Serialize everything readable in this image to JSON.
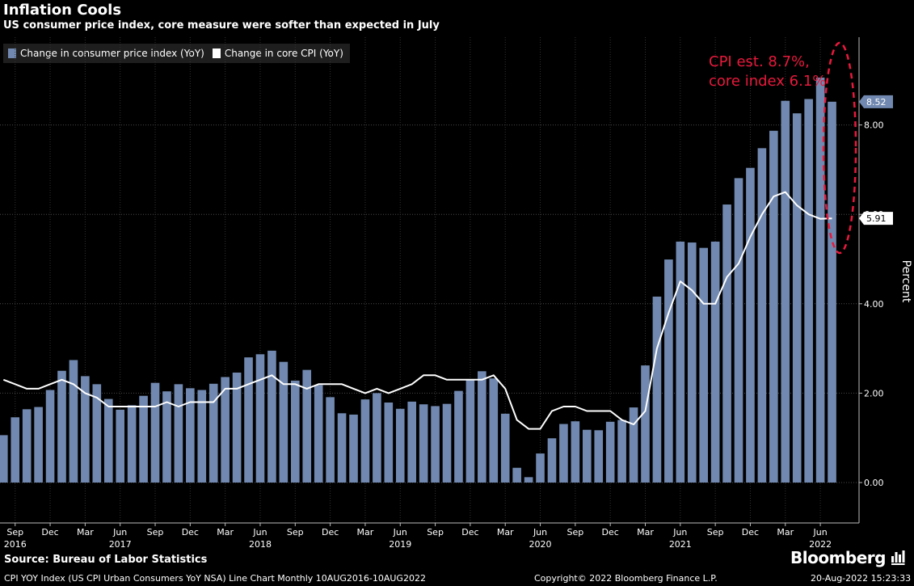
{
  "header": {
    "title": "Inflation Cools",
    "subtitle": "US consumer price index, core measure were softer than expected in July"
  },
  "legend": {
    "items": [
      {
        "label": "Change in consumer price index (YoY)",
        "color": "#7189b0"
      },
      {
        "label": "Change in core CPI (YoY)",
        "color": "#ffffff"
      }
    ]
  },
  "chart_data": {
    "type": "bar",
    "x_range": [
      "2016-08",
      "2022-07"
    ],
    "months": [
      "2016-08",
      "2016-09",
      "2016-10",
      "2016-11",
      "2016-12",
      "2017-01",
      "2017-02",
      "2017-03",
      "2017-04",
      "2017-05",
      "2017-06",
      "2017-07",
      "2017-08",
      "2017-09",
      "2017-10",
      "2017-11",
      "2017-12",
      "2018-01",
      "2018-02",
      "2018-03",
      "2018-04",
      "2018-05",
      "2018-06",
      "2018-07",
      "2018-08",
      "2018-09",
      "2018-10",
      "2018-11",
      "2018-12",
      "2019-01",
      "2019-02",
      "2019-03",
      "2019-04",
      "2019-05",
      "2019-06",
      "2019-07",
      "2019-08",
      "2019-09",
      "2019-10",
      "2019-11",
      "2019-12",
      "2020-01",
      "2020-02",
      "2020-03",
      "2020-04",
      "2020-05",
      "2020-06",
      "2020-07",
      "2020-08",
      "2020-09",
      "2020-10",
      "2020-11",
      "2020-12",
      "2021-01",
      "2021-02",
      "2021-03",
      "2021-04",
      "2021-05",
      "2021-06",
      "2021-07",
      "2021-08",
      "2021-09",
      "2021-10",
      "2021-11",
      "2021-12",
      "2022-01",
      "2022-02",
      "2022-03",
      "2022-04",
      "2022-05",
      "2022-06",
      "2022-07"
    ],
    "series": [
      {
        "name": "Change in consumer price index (YoY)",
        "style": "bar",
        "color": "#7189b0",
        "values": [
          1.06,
          1.46,
          1.64,
          1.69,
          2.07,
          2.5,
          2.74,
          2.38,
          2.2,
          1.87,
          1.63,
          1.73,
          1.94,
          2.23,
          2.04,
          2.2,
          2.11,
          2.07,
          2.21,
          2.36,
          2.46,
          2.8,
          2.87,
          2.95,
          2.7,
          2.28,
          2.52,
          2.18,
          1.91,
          1.55,
          1.52,
          1.86,
          2.0,
          1.79,
          1.65,
          1.81,
          1.75,
          1.71,
          1.76,
          2.05,
          2.29,
          2.49,
          2.33,
          1.54,
          0.33,
          0.12,
          0.65,
          0.99,
          1.31,
          1.37,
          1.18,
          1.17,
          1.36,
          1.4,
          1.68,
          2.62,
          4.16,
          4.99,
          5.39,
          5.37,
          5.25,
          5.39,
          6.22,
          6.81,
          7.04,
          7.48,
          7.87,
          8.54,
          8.26,
          8.58,
          9.06,
          8.52
        ]
      },
      {
        "name": "Change in core CPI (YoY)",
        "style": "line",
        "color": "#ffffff",
        "values": [
          2.3,
          2.2,
          2.1,
          2.1,
          2.2,
          2.3,
          2.2,
          2.0,
          1.9,
          1.7,
          1.7,
          1.7,
          1.7,
          1.7,
          1.8,
          1.7,
          1.8,
          1.8,
          1.8,
          2.1,
          2.1,
          2.2,
          2.3,
          2.4,
          2.2,
          2.2,
          2.1,
          2.2,
          2.2,
          2.2,
          2.1,
          2.0,
          2.1,
          2.0,
          2.1,
          2.2,
          2.4,
          2.4,
          2.3,
          2.3,
          2.3,
          2.3,
          2.4,
          2.1,
          1.4,
          1.2,
          1.2,
          1.6,
          1.7,
          1.7,
          1.6,
          1.6,
          1.6,
          1.4,
          1.3,
          1.6,
          3.0,
          3.8,
          4.5,
          4.3,
          4.0,
          4.0,
          4.6,
          4.9,
          5.5,
          6.0,
          6.4,
          6.5,
          6.2,
          6.0,
          5.9,
          5.91
        ]
      }
    ],
    "last_value_labels": [
      {
        "series": "Change in consumer price index (YoY)",
        "text": "8.52",
        "value": 8.52
      },
      {
        "series": "Change in core CPI (YoY)",
        "text": "5.91",
        "value": 5.91
      }
    ],
    "y_axis": {
      "label": "Percent",
      "position": "right",
      "ylim": [
        -0.85,
        9.3
      ],
      "ticks": [
        {
          "value": 0,
          "label": "0.00"
        },
        {
          "value": 2,
          "label": "2.00"
        },
        {
          "value": 4,
          "label": "4.00"
        },
        {
          "value": 6,
          "label": "6.00"
        },
        {
          "value": 8,
          "label": "8.00"
        }
      ]
    },
    "x_axis": {
      "month_ticks": [
        {
          "month": "2016-09",
          "label": "Sep"
        },
        {
          "month": "2016-12",
          "label": "Dec"
        },
        {
          "month": "2017-03",
          "label": "Mar"
        },
        {
          "month": "2017-06",
          "label": "Jun"
        },
        {
          "month": "2017-09",
          "label": "Sep"
        },
        {
          "month": "2017-12",
          "label": "Dec"
        },
        {
          "month": "2018-03",
          "label": "Mar"
        },
        {
          "month": "2018-06",
          "label": "Jun"
        },
        {
          "month": "2018-09",
          "label": "Sep"
        },
        {
          "month": "2018-12",
          "label": "Dec"
        },
        {
          "month": "2019-03",
          "label": "Mar"
        },
        {
          "month": "2019-06",
          "label": "Jun"
        },
        {
          "month": "2019-09",
          "label": "Sep"
        },
        {
          "month": "2019-12",
          "label": "Dec"
        },
        {
          "month": "2020-03",
          "label": "Mar"
        },
        {
          "month": "2020-06",
          "label": "Jun"
        },
        {
          "month": "2020-09",
          "label": "Sep"
        },
        {
          "month": "2020-12",
          "label": "Dec"
        },
        {
          "month": "2021-03",
          "label": "Mar"
        },
        {
          "month": "2021-06",
          "label": "Jun"
        },
        {
          "month": "2021-09",
          "label": "Sep"
        },
        {
          "month": "2021-12",
          "label": "Dec"
        },
        {
          "month": "2022-03",
          "label": "Mar"
        },
        {
          "month": "2022-06",
          "label": "Jun"
        }
      ],
      "year_labels": [
        {
          "month": "2016-09",
          "label": "2016"
        },
        {
          "month": "2017-06",
          "label": "2017"
        },
        {
          "month": "2018-06",
          "label": "2018"
        },
        {
          "month": "2019-06",
          "label": "2019"
        },
        {
          "month": "2020-06",
          "label": "2020"
        },
        {
          "month": "2021-06",
          "label": "2021"
        },
        {
          "month": "2022-06",
          "label": "2022"
        }
      ]
    },
    "grid": true,
    "annotation": {
      "lines": [
        "CPI est. 8.7%,",
        "core index 6.1%"
      ],
      "color": "#e8193c",
      "shape": "dashed ellipse"
    }
  },
  "footer": {
    "source": "Source: Bureau of Labor Statistics",
    "brand": "Bloomberg",
    "brand_icon": "bloomberg-terminal-icon",
    "description": "CPI YOY Index (US CPI Urban Consumers YoY NSA) Line Chart  Monthly 10AUG2016-10AUG2022",
    "copyright": "Copyright© 2022 Bloomberg Finance L.P.",
    "timestamp": "20-Aug-2022 15:23:33"
  }
}
